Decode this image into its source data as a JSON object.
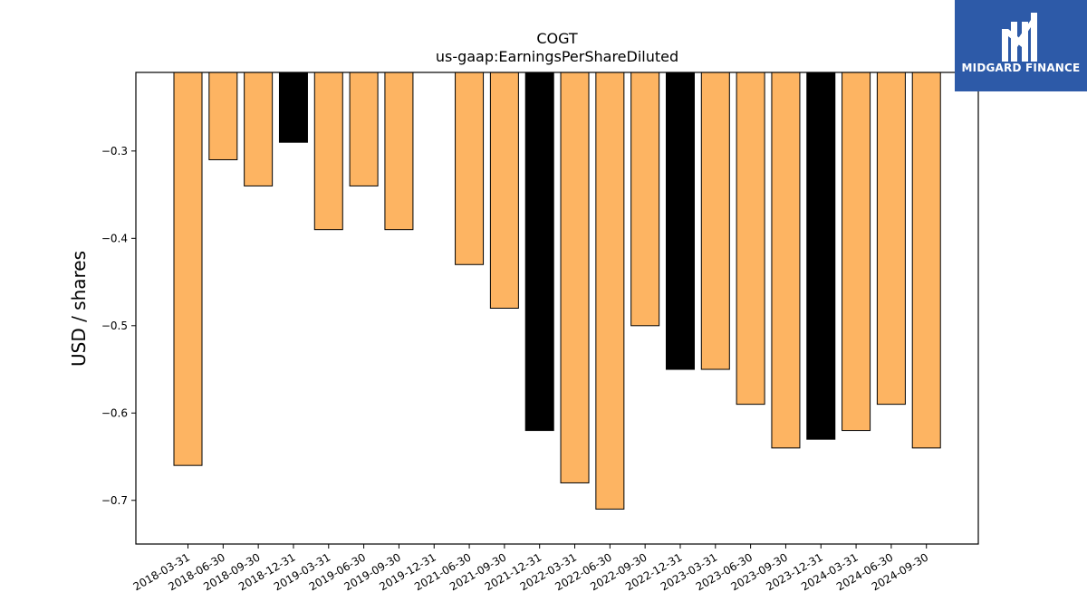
{
  "chart_data": {
    "type": "bar",
    "title": "COGT",
    "subtitle": "us-gaap:EarningsPerShareDiluted",
    "ylabel": "USD / shares",
    "xlabel": "",
    "ylim": [
      -0.75,
      -0.21
    ],
    "yticks": [
      -0.7,
      -0.6,
      -0.5,
      -0.4,
      -0.3
    ],
    "grid": false,
    "categories": [
      "2018-03-31",
      "2018-06-30",
      "2018-09-30",
      "2018-12-31",
      "2019-03-31",
      "2019-06-30",
      "2019-09-30",
      "2019-12-31",
      "2021-06-30",
      "2021-09-30",
      "2021-12-31",
      "2022-03-31",
      "2022-06-30",
      "2022-09-30",
      "2022-12-31",
      "2023-03-31",
      "2023-06-30",
      "2023-09-30",
      "2023-12-31",
      "2024-03-31",
      "2024-06-30",
      "2024-09-30"
    ],
    "values": [
      -0.66,
      -0.31,
      -0.34,
      -0.29,
      -0.39,
      -0.34,
      -0.39,
      null,
      -0.43,
      -0.48,
      -0.62,
      -0.68,
      -0.71,
      -0.5,
      -0.55,
      -0.55,
      -0.59,
      -0.64,
      -0.63,
      -0.62,
      -0.59,
      -0.64
    ],
    "bar_colors": [
      "#fdb462",
      "#fdb462",
      "#fdb462",
      "#000000",
      "#fdb462",
      "#fdb462",
      "#fdb462",
      "#fdb462",
      "#fdb462",
      "#fdb462",
      "#000000",
      "#fdb462",
      "#fdb462",
      "#fdb462",
      "#000000",
      "#fdb462",
      "#fdb462",
      "#fdb462",
      "#000000",
      "#fdb462",
      "#fdb462",
      "#fdb462"
    ],
    "colors": {
      "quarter": "#fdb462",
      "year_end": "#000000",
      "edge": "#000000"
    }
  },
  "logo": {
    "text": "MIDGARD FINANCE",
    "background": "#2d5aa8",
    "foreground": "#ffffff",
    "icon": "midgard-logo-mark"
  }
}
